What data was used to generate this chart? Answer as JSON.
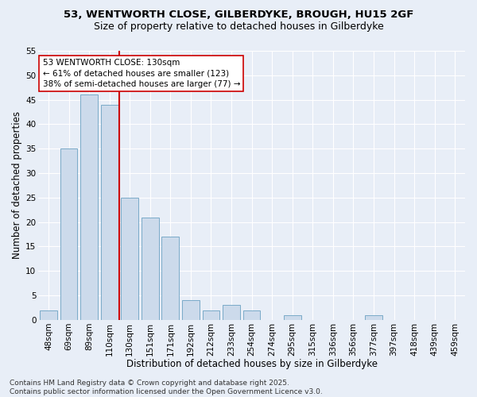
{
  "title_line1": "53, WENTWORTH CLOSE, GILBERDYKE, BROUGH, HU15 2GF",
  "title_line2": "Size of property relative to detached houses in Gilberdyke",
  "xlabel": "Distribution of detached houses by size in Gilberdyke",
  "ylabel": "Number of detached properties",
  "categories": [
    "48sqm",
    "69sqm",
    "89sqm",
    "110sqm",
    "130sqm",
    "151sqm",
    "171sqm",
    "192sqm",
    "212sqm",
    "233sqm",
    "254sqm",
    "274sqm",
    "295sqm",
    "315sqm",
    "336sqm",
    "356sqm",
    "377sqm",
    "397sqm",
    "418sqm",
    "439sqm",
    "459sqm"
  ],
  "values": [
    2,
    35,
    46,
    44,
    25,
    21,
    17,
    4,
    2,
    3,
    2,
    0,
    1,
    0,
    0,
    0,
    1,
    0,
    0,
    0,
    0
  ],
  "bar_color": "#ccdaeb",
  "bar_edge_color": "#7aaac8",
  "reference_line_index": 4,
  "reference_line_color": "#cc0000",
  "ylim": [
    0,
    55
  ],
  "yticks": [
    0,
    5,
    10,
    15,
    20,
    25,
    30,
    35,
    40,
    45,
    50,
    55
  ],
  "annotation_text": "53 WENTWORTH CLOSE: 130sqm\n← 61% of detached houses are smaller (123)\n38% of semi-detached houses are larger (77) →",
  "annotation_box_facecolor": "#ffffff",
  "annotation_box_edgecolor": "#cc0000",
  "footer_line1": "Contains HM Land Registry data © Crown copyright and database right 2025.",
  "footer_line2": "Contains public sector information licensed under the Open Government Licence v3.0.",
  "background_color": "#e8eef7",
  "grid_color": "#ffffff",
  "title1_fontsize": 9.5,
  "title2_fontsize": 9.0,
  "axis_label_fontsize": 8.5,
  "tick_fontsize": 7.5,
  "annotation_fontsize": 7.5,
  "footer_fontsize": 6.5
}
